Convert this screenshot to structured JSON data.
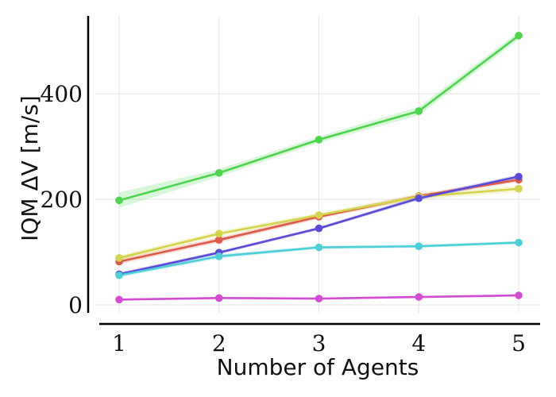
{
  "chart_data": {
    "type": "line",
    "xlabel": "Number of Agents",
    "ylabel": "IQM ΔV [m/s]",
    "x": [
      1,
      2,
      3,
      4,
      5
    ],
    "xticks": [
      "1",
      "2",
      "3",
      "4",
      "5"
    ],
    "yticks": [
      "0",
      "200",
      "400"
    ],
    "ylim": [
      -20,
      550
    ],
    "xlim": [
      0.8,
      5.2
    ],
    "grid": true,
    "series": [
      {
        "color": "#4cd44c",
        "values": [
          198,
          250,
          313,
          367,
          510
        ],
        "band": [
          [
            184,
            213
          ],
          [
            243,
            257
          ],
          [
            307,
            319
          ],
          [
            359,
            375
          ],
          [
            503,
            517
          ]
        ]
      },
      {
        "color": "#dd5a4a",
        "values": [
          82,
          123,
          167,
          206,
          237
        ],
        "band": [
          [
            77,
            87
          ],
          [
            118,
            128
          ],
          [
            163,
            171
          ],
          [
            202,
            210
          ],
          [
            233,
            241
          ]
        ]
      },
      {
        "color": "#d4d44c",
        "values": [
          89,
          135,
          170,
          205,
          220
        ],
        "band": [
          [
            84,
            94
          ],
          [
            130,
            140
          ],
          [
            166,
            174
          ],
          [
            199,
            211
          ],
          [
            214,
            226
          ]
        ]
      },
      {
        "color": "#5a4ad8",
        "values": [
          58,
          99,
          145,
          202,
          243
        ],
        "band": [
          [
            54,
            62
          ],
          [
            96,
            102
          ],
          [
            142,
            148
          ],
          [
            198,
            206
          ],
          [
            239,
            247
          ]
        ]
      },
      {
        "color": "#4ccfd8",
        "values": [
          56,
          92,
          109,
          111,
          118
        ],
        "band": [
          [
            52,
            60
          ],
          [
            88,
            96
          ],
          [
            106,
            112
          ],
          [
            108,
            114
          ],
          [
            115,
            121
          ]
        ]
      },
      {
        "color": "#d44cd4",
        "values": [
          10,
          13,
          12,
          15,
          18
        ],
        "band": [
          [
            8,
            12
          ],
          [
            11,
            15
          ],
          [
            10,
            14
          ],
          [
            13,
            17
          ],
          [
            16,
            20
          ]
        ]
      }
    ]
  }
}
